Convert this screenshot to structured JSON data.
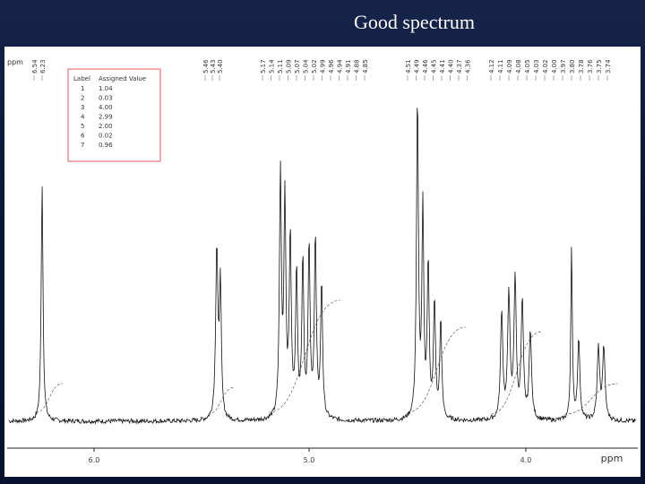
{
  "title": "Good spectrum",
  "spectrum": {
    "y_axis_label": "ppm",
    "x_axis_label": "ppm",
    "x_ticks": [
      "6.0",
      "5.0",
      "4.0"
    ],
    "peak_labels": [
      [
        "6.54",
        "6.23"
      ],
      [
        "5.46",
        "5.43",
        "5.40"
      ],
      [
        "5.17",
        "5.14",
        "5.11",
        "5.09",
        "5.07",
        "5.04",
        "5.02",
        "4.99",
        "4.96",
        "4.94",
        "4.91",
        "4.88",
        "4.85"
      ],
      [
        "4.51",
        "4.49",
        "4.46",
        "4.45",
        "4.41",
        "4.40",
        "4.37",
        "4.36"
      ],
      [
        "4.12",
        "4.11",
        "4.09",
        "4.08",
        "4.05",
        "4.03",
        "4.02",
        "4.00",
        "3.97",
        "3.80",
        "3.78",
        "3.76",
        "3.75",
        "3.74"
      ]
    ],
    "table": {
      "headers": [
        "Label",
        "Assigned Value"
      ],
      "rows": [
        [
          "1",
          "1.04"
        ],
        [
          "2",
          "0.03"
        ],
        [
          "3",
          "4.00"
        ],
        [
          "4",
          "2.99"
        ],
        [
          "5",
          "2.00"
        ],
        [
          "6",
          "0.02"
        ],
        [
          "7",
          "0.96"
        ]
      ]
    }
  }
}
